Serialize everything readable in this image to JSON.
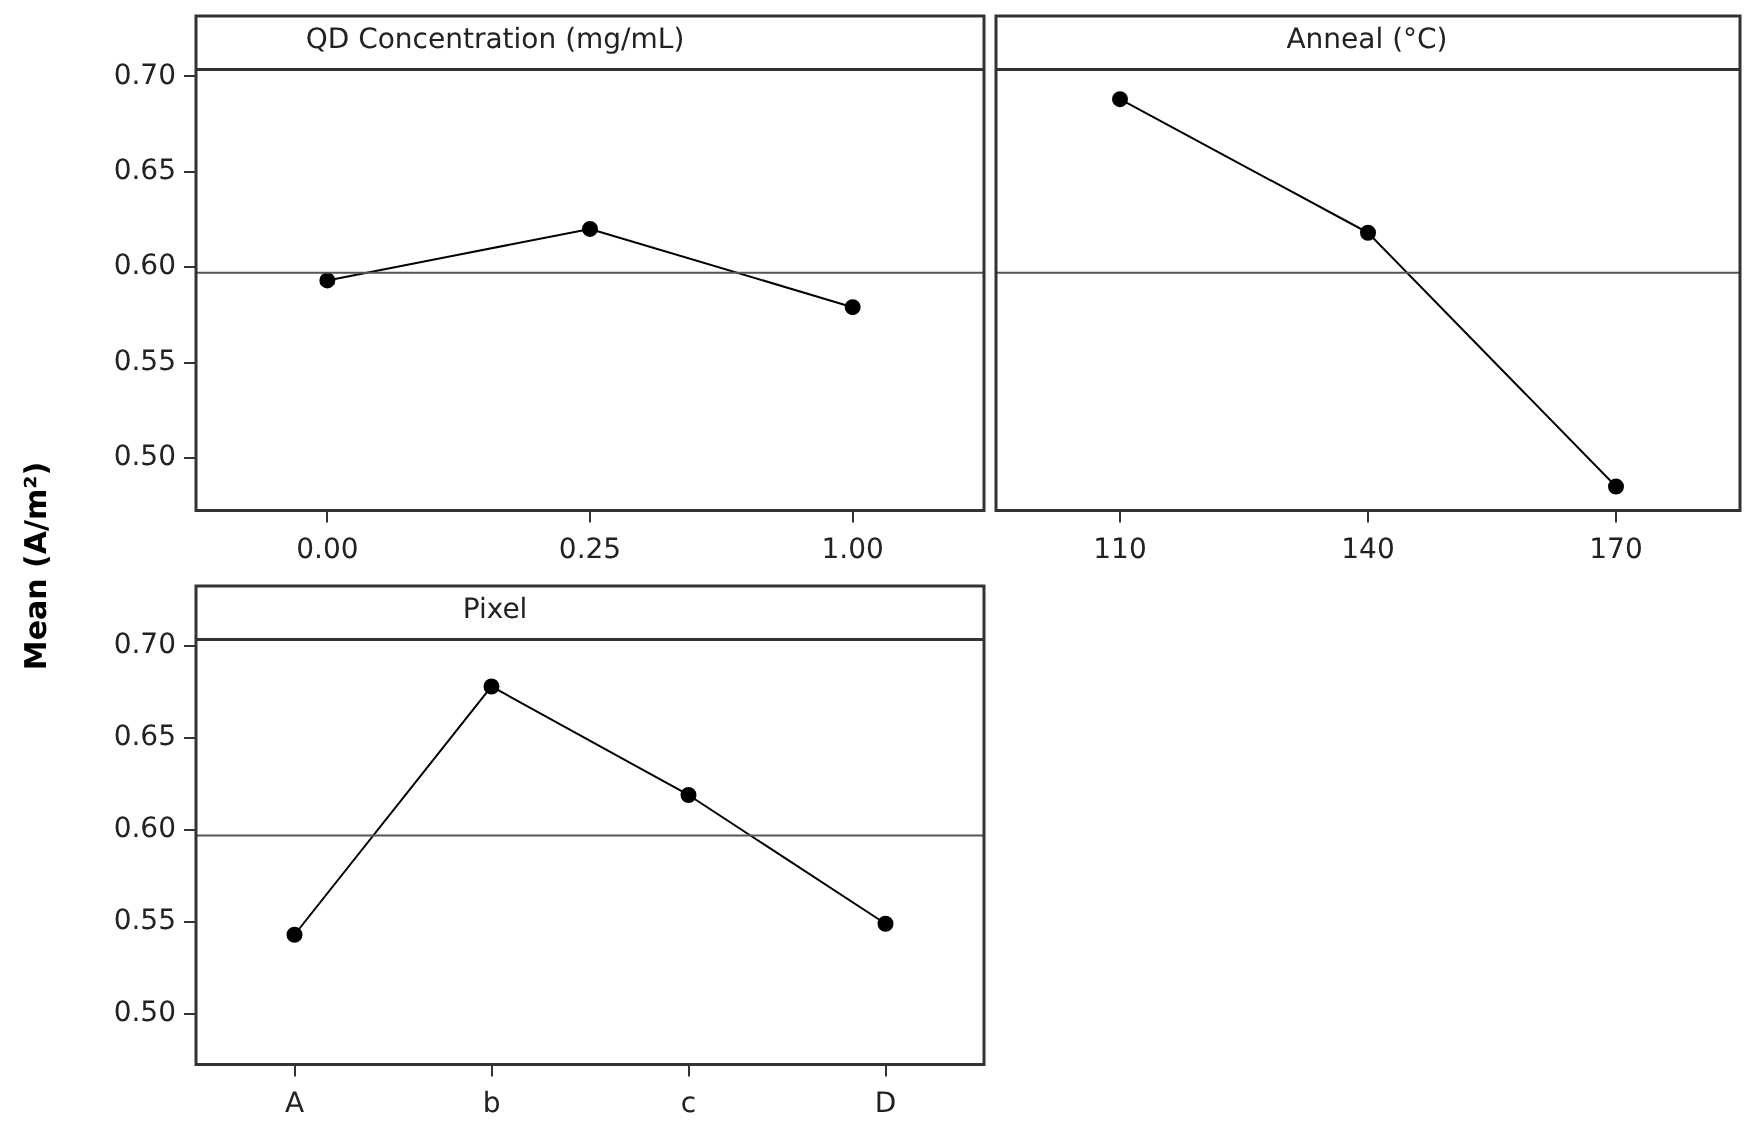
{
  "chart_data": [
    {
      "type": "line",
      "title": "QD Concentration (mg/mL)",
      "ylabel": "Mean (A/m²)",
      "categories": [
        "0.00",
        "0.25",
        "1.00"
      ],
      "series": [
        {
          "color": "#000000",
          "values": [
            0.593,
            0.62,
            0.579
          ]
        }
      ],
      "ylim": [
        0.4725,
        0.7035
      ],
      "yticks": [
        {
          "value": 0.5,
          "label": "0.50"
        },
        {
          "value": 0.55,
          "label": "0.55"
        },
        {
          "value": 0.6,
          "label": "0.60"
        },
        {
          "value": 0.65,
          "label": "0.65"
        },
        {
          "value": 0.7,
          "label": "0.70"
        }
      ],
      "ref_lines": [
        {
          "axis": "y",
          "value": 0.597,
          "color": "#555555"
        }
      ],
      "marker": "circle"
    },
    {
      "type": "line",
      "title": "Anneal (°C)",
      "categories": [
        "110",
        "140",
        "170"
      ],
      "series": [
        {
          "color": "#000000",
          "values": [
            0.688,
            0.618,
            0.485
          ]
        }
      ],
      "ylim": [
        0.4725,
        0.7035
      ],
      "tick_labels": "x",
      "ref_lines": [
        {
          "axis": "y",
          "value": 0.597,
          "color": "#555555"
        }
      ],
      "marker": "circle"
    },
    {
      "type": "line",
      "title": "Pixel",
      "categories": [
        "A",
        "b",
        "c",
        "D"
      ],
      "series": [
        {
          "color": "#000000",
          "values": [
            0.543,
            0.678,
            0.619,
            0.549
          ]
        }
      ],
      "ylim": [
        0.4725,
        0.7035
      ],
      "yticks": [
        {
          "value": 0.5,
          "label": "0.50"
        },
        {
          "value": 0.55,
          "label": "0.55"
        },
        {
          "value": 0.6,
          "label": "0.60"
        },
        {
          "value": 0.65,
          "label": "0.65"
        },
        {
          "value": 0.7,
          "label": "0.70"
        }
      ],
      "ref_lines": [
        {
          "axis": "y",
          "value": 0.597,
          "color": "#555555"
        }
      ],
      "marker": "circle"
    }
  ]
}
